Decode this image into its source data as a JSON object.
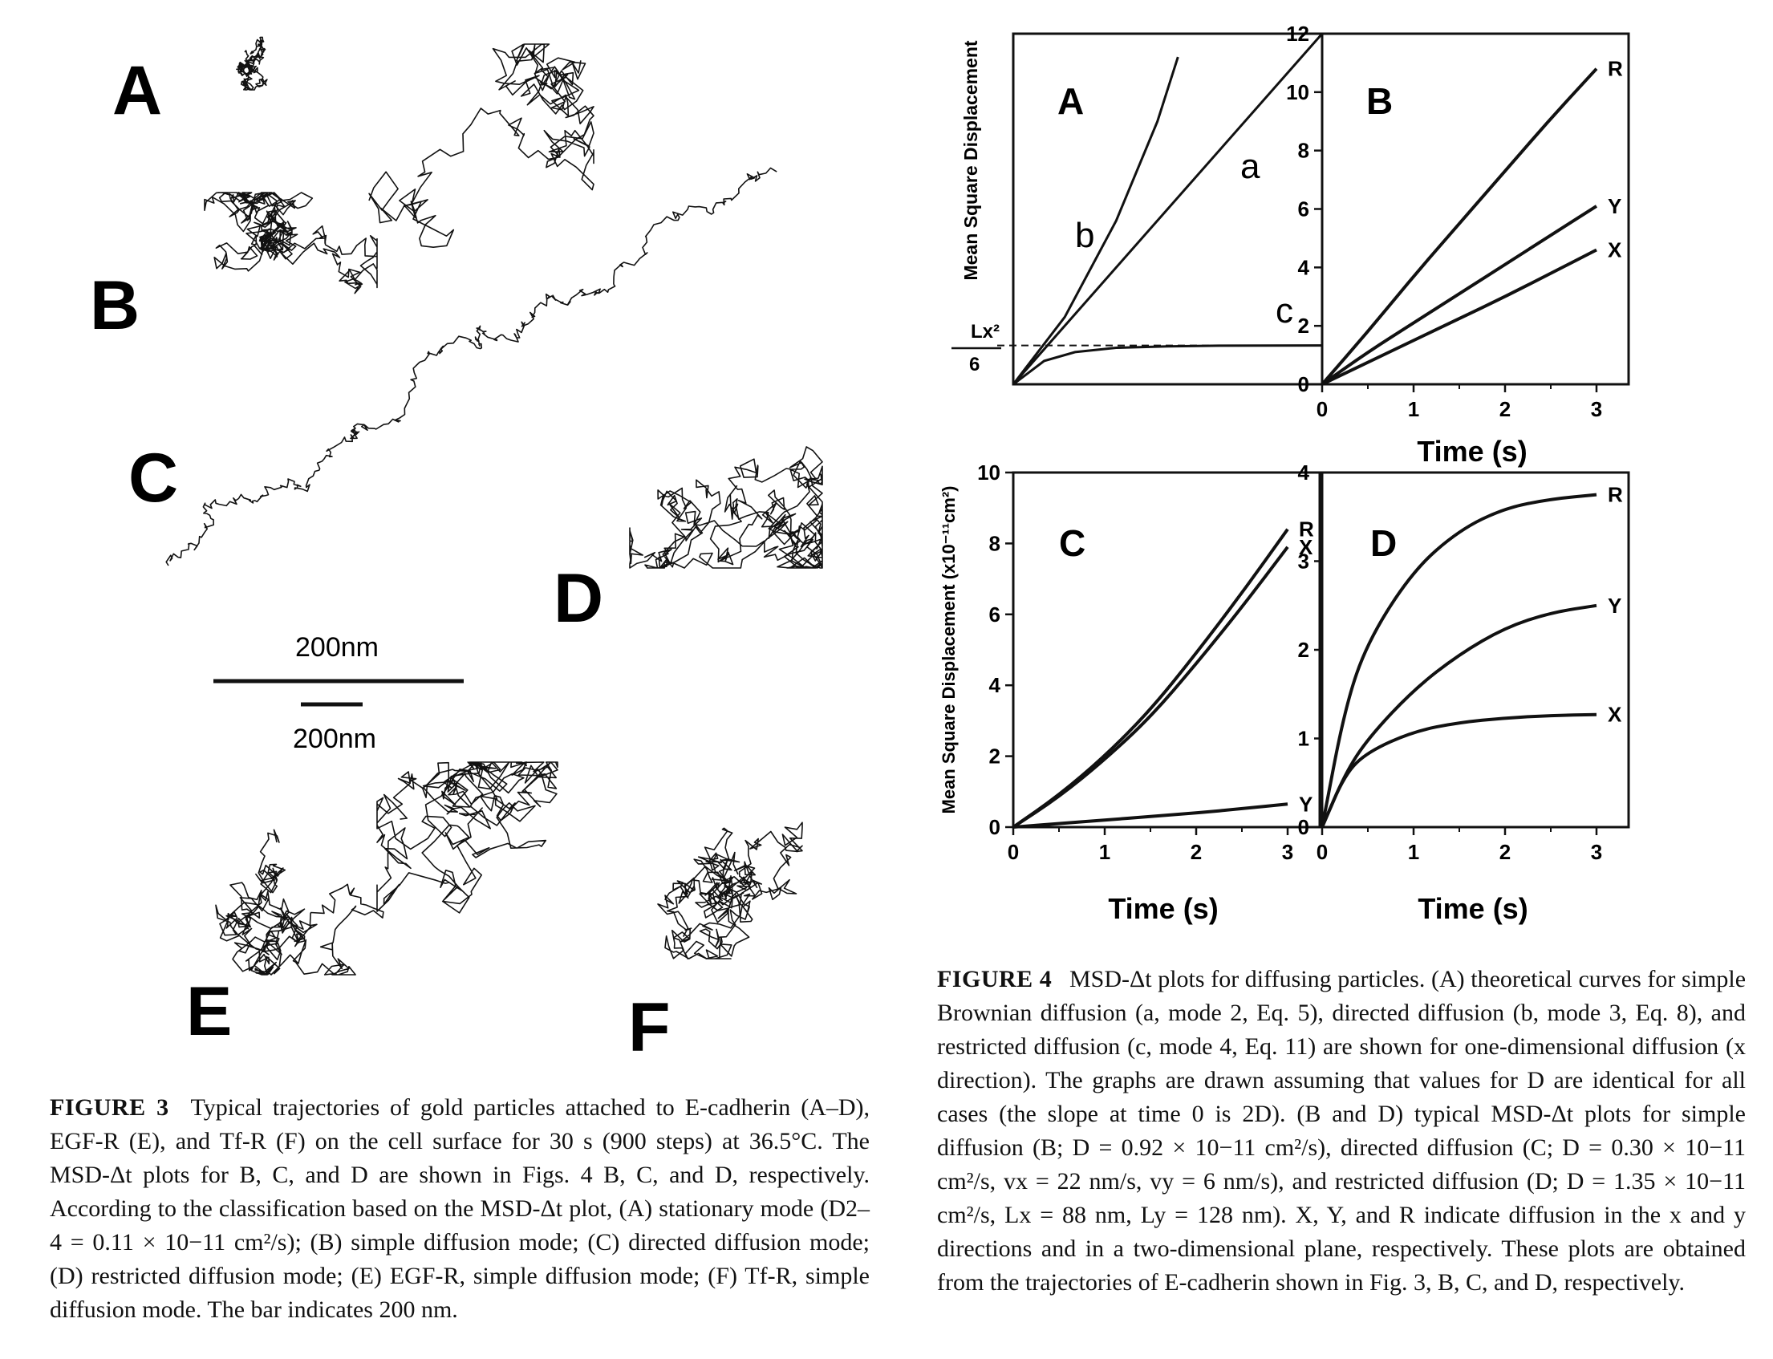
{
  "figure3": {
    "panel_labels": [
      "A",
      "B",
      "C",
      "D",
      "E",
      "F"
    ],
    "scalebar_top_label": "200nm",
    "scalebar_bottom_label": "200nm",
    "caption_label": "FIGURE 3",
    "caption_title": "Typical trajectories of gold particles attached to E-cadherin",
    "caption_text": "(A–D), EGF-R (E), and Tf-R (F) on the cell surface for 30 s (900 steps) at 36.5°C. The MSD-Δt plots for B, C, and D are shown in Figs. 4 B, C, and D, respectively. According to the classification based on the MSD-Δt plot, (A) stationary mode (D2–4 = 0.11 × 10−11 cm²/s); (B) simple diffusion mode; (C) directed diffusion mode; (D) restricted diffusion mode; (E) EGF-R, simple diffusion mode; (F) Tf-R, simple diffusion mode. The bar indicates 200 nm."
  },
  "figure4": {
    "caption_label": "FIGURE 4",
    "caption_title": "MSD-Δt plots for diffusing particles.",
    "caption_text": "(A) theoretical curves for simple Brownian diffusion (a, mode 2, Eq. 5), directed diffusion (b, mode 3, Eq. 8), and restricted diffusion (c, mode 4, Eq. 11) are shown for one-dimensional diffusion (x direction). The graphs are drawn assuming that values for D are identical for all cases (the slope at time 0 is 2D). (B and D) typical MSD-Δt plots for simple diffusion (B; D = 0.92 × 10−11 cm²/s), directed diffusion (C; D = 0.30 × 10−11 cm²/s, vx = 22 nm/s, vy = 6 nm/s), and restricted diffusion (D; D = 1.35 × 10−11 cm²/s, Lx = 88 nm, Ly = 128 nm). X, Y, and R indicate diffusion in the x and y directions and in a two-dimensional plane, respectively. These plots are obtained from the trajectories of E-cadherin shown in Fig. 3, B, C, and D, respectively.",
    "panel_A": {
      "label": "A",
      "ylabel": "Mean Square Displacement",
      "threshold_label_num": "Lx²",
      "threshold_label_den": "6",
      "curve_labels": [
        "a",
        "b",
        "c"
      ]
    },
    "time_label_top": "Time (s)",
    "time_label_C": "Time (s)",
    "time_label_D": "Time (s)",
    "ylabel_bottom": "Mean Square Displacement (x10⁻¹¹cm²)"
  },
  "chart_data": [
    {
      "type": "line",
      "panel": "A",
      "title": "",
      "xlabel": "",
      "ylabel": "Mean Square Displacement",
      "series": [
        {
          "name": "a",
          "x": [
            0,
            3
          ],
          "values": [
            0,
            12
          ]
        },
        {
          "name": "b",
          "x": [
            0,
            0.5,
            1.0,
            1.4,
            1.6
          ],
          "values": [
            0,
            2.3,
            5.6,
            9.0,
            11.2
          ]
        },
        {
          "name": "c",
          "x": [
            0,
            0.3,
            0.6,
            1.0,
            1.5,
            2.0,
            3.0
          ],
          "values": [
            0,
            0.8,
            1.1,
            1.25,
            1.3,
            1.32,
            1.33
          ]
        }
      ],
      "threshold": 1.33,
      "xlim": [
        0,
        3
      ],
      "ylim": [
        0,
        12
      ]
    },
    {
      "type": "line",
      "panel": "B",
      "title": "",
      "xlabel": "Time (s)",
      "ylabel": "",
      "x": [
        0,
        0.5,
        1.0,
        1.5,
        2.0,
        2.5,
        3.0
      ],
      "series": [
        {
          "name": "R",
          "values": [
            0,
            1.8,
            3.7,
            5.5,
            7.3,
            9.1,
            10.8
          ]
        },
        {
          "name": "Y",
          "values": [
            0,
            1.1,
            2.1,
            3.1,
            4.1,
            5.1,
            6.1
          ]
        },
        {
          "name": "X",
          "values": [
            0,
            0.75,
            1.5,
            2.25,
            3.0,
            3.8,
            4.6
          ]
        }
      ],
      "xticks": [
        0,
        1,
        2,
        3
      ],
      "yticks": [
        0,
        2,
        4,
        6,
        8,
        10,
        12
      ],
      "xlim": [
        0,
        3
      ],
      "ylim": [
        0,
        12
      ]
    },
    {
      "type": "line",
      "panel": "C",
      "title": "",
      "xlabel": "Time (s)",
      "ylabel": "Mean Square Displacement (x10⁻¹¹cm²)",
      "x": [
        0,
        0.5,
        1.0,
        1.5,
        2.0,
        2.5,
        3.0
      ],
      "series": [
        {
          "name": "R",
          "values": [
            0,
            0.9,
            2.0,
            3.3,
            4.9,
            6.6,
            8.4
          ]
        },
        {
          "name": "X",
          "values": [
            0,
            0.85,
            1.9,
            3.1,
            4.6,
            6.2,
            7.9
          ]
        },
        {
          "name": "Y",
          "values": [
            0,
            0.1,
            0.2,
            0.3,
            0.4,
            0.52,
            0.65
          ]
        }
      ],
      "xticks": [
        0,
        1,
        2,
        3
      ],
      "yticks": [
        0,
        2,
        4,
        6,
        8,
        10
      ],
      "xlim": [
        0,
        3
      ],
      "ylim": [
        0,
        10
      ]
    },
    {
      "type": "line",
      "panel": "D",
      "title": "",
      "xlabel": "Time (s)",
      "ylabel": "",
      "x": [
        0,
        0.25,
        0.5,
        1.0,
        1.5,
        2.0,
        2.5,
        3.0
      ],
      "series": [
        {
          "name": "R",
          "values": [
            0,
            1.35,
            2.1,
            2.9,
            3.35,
            3.6,
            3.7,
            3.75
          ]
        },
        {
          "name": "Y",
          "values": [
            0,
            0.6,
            1.0,
            1.55,
            1.95,
            2.25,
            2.42,
            2.5
          ]
        },
        {
          "name": "X",
          "values": [
            0,
            0.6,
            0.85,
            1.08,
            1.18,
            1.23,
            1.26,
            1.27
          ]
        }
      ],
      "xticks": [
        0,
        1,
        2,
        3
      ],
      "yticks": [
        0,
        1,
        2,
        3,
        4
      ],
      "xlim": [
        0,
        3
      ],
      "ylim": [
        0,
        4
      ]
    }
  ]
}
